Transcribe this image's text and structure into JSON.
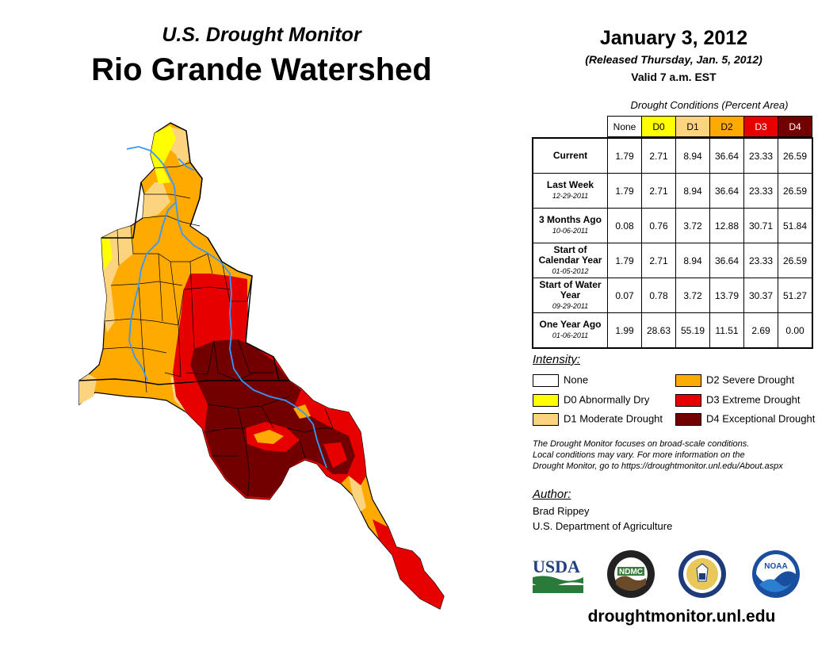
{
  "header": {
    "subtitle": "U.S. Drought Monitor",
    "title": "Rio Grande Watershed",
    "date": "January 3, 2012",
    "released": "(Released Thursday, Jan. 5, 2012)",
    "valid": "Valid 7 a.m. EST"
  },
  "table": {
    "caption": "Drought Conditions (Percent Area)",
    "columns": [
      "None",
      "D0",
      "D1",
      "D2",
      "D3",
      "D4"
    ],
    "rows": [
      {
        "label": "Current",
        "date": "",
        "values": [
          "1.79",
          "2.71",
          "8.94",
          "36.64",
          "23.33",
          "26.59"
        ]
      },
      {
        "label": "Last Week",
        "date": "12-29-2011",
        "values": [
          "1.79",
          "2.71",
          "8.94",
          "36.64",
          "23.33",
          "26.59"
        ]
      },
      {
        "label": "3 Months Ago",
        "date": "10-06-2011",
        "values": [
          "0.08",
          "0.76",
          "3.72",
          "12.88",
          "30.71",
          "51.84"
        ]
      },
      {
        "label": "Start of Calendar Year",
        "date": "01-05-2012",
        "values": [
          "1.79",
          "2.71",
          "8.94",
          "36.64",
          "23.33",
          "26.59"
        ]
      },
      {
        "label": "Start of Water Year",
        "date": "09-29-2011",
        "values": [
          "0.07",
          "0.78",
          "3.72",
          "13.79",
          "30.37",
          "51.27"
        ]
      },
      {
        "label": "One Year Ago",
        "date": "01-06-2011",
        "values": [
          "1.99",
          "28.63",
          "55.19",
          "11.51",
          "2.69",
          "0.00"
        ]
      }
    ]
  },
  "legend": {
    "title": "Intensity:",
    "items": [
      {
        "label": "None",
        "color": "#ffffff"
      },
      {
        "label": "D0 Abnormally Dry",
        "color": "#ffff00"
      },
      {
        "label": "D1 Moderate Drought",
        "color": "#fcd37f"
      },
      {
        "label": "D2 Severe Drought",
        "color": "#ffaa00"
      },
      {
        "label": "D3 Extreme Drought",
        "color": "#e60000"
      },
      {
        "label": "D4 Exceptional Drought",
        "color": "#730000"
      }
    ]
  },
  "note": {
    "line1": "The Drought Monitor focuses on broad-scale conditions.",
    "line2": "Local conditions may vary. For more information on the",
    "line3": "Drought Monitor, go to https://droughtmonitor.unl.edu/About.aspx"
  },
  "author": {
    "title": "Author:",
    "name": "Brad Rippey",
    "org": "U.S. Department of Agriculture"
  },
  "logos": {
    "usda": "USDA",
    "ndmc": "NDMC",
    "noaa": "NOAA"
  },
  "website": "droughtmonitor.unl.edu",
  "colors": {
    "none": "#ffffff",
    "d0": "#ffff00",
    "d1": "#fcd37f",
    "d2": "#ffaa00",
    "d3": "#e60000",
    "d4": "#730000",
    "river": "#3399ff"
  }
}
